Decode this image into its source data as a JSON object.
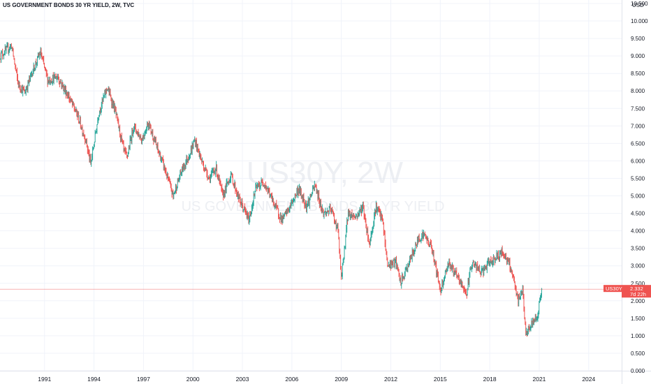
{
  "header": {
    "title": "US GOVERNMENT BONDS 30 YR YIELD, 2W, TVC",
    "currency": "USD"
  },
  "watermark": {
    "symbol": "US30Y, 2W",
    "description": "US GOVERNMENT BONDS 30 YR YIELD"
  },
  "price_tag": {
    "symbol": "US30Y",
    "value": "2.332",
    "countdown": "7d 22h"
  },
  "colors": {
    "up": "#26a69a",
    "down": "#ef5350",
    "price_line": "#ef5350",
    "grid": "#f0f3fa",
    "axis_text": "#131722",
    "watermark": "#dfe2ea"
  },
  "chart_data": {
    "type": "candlestick",
    "title": "US GOVERNMENT BONDS 30 YR YIELD, 2W, TVC",
    "xlabel": "",
    "ylabel": "",
    "x_ticks": [
      "1991",
      "1994",
      "1997",
      "2000",
      "2003",
      "2006",
      "2009",
      "2012",
      "2015",
      "2018",
      "2021",
      "2024"
    ],
    "y_ticks": [
      "0.000",
      "0.500",
      "1.000",
      "1.500",
      "2.000",
      "2.500",
      "3.000",
      "3.500",
      "4.000",
      "4.500",
      "5.000",
      "5.500",
      "6.000",
      "6.500",
      "7.000",
      "7.500",
      "8.000",
      "8.500",
      "9.000",
      "9.500",
      "10.000",
      "10.500"
    ],
    "xlim": [
      1988.3,
      2026.0
    ],
    "ylim": [
      0.0,
      10.6
    ],
    "grid": true,
    "last_value": 2.332,
    "series": [
      {
        "values": [
          [
            1988.3,
            9.0
          ],
          [
            1989.0,
            9.3
          ],
          [
            1989.4,
            8.2
          ],
          [
            1989.8,
            7.95
          ],
          [
            1990.3,
            8.6
          ],
          [
            1990.75,
            9.1
          ],
          [
            1991.2,
            8.3
          ],
          [
            1991.8,
            8.4
          ],
          [
            1992.5,
            7.8
          ],
          [
            1993.0,
            7.3
          ],
          [
            1993.5,
            6.6
          ],
          [
            1993.8,
            5.9
          ],
          [
            1994.3,
            7.4
          ],
          [
            1994.8,
            8.1
          ],
          [
            1995.3,
            7.4
          ],
          [
            1995.8,
            6.3
          ],
          [
            1996.0,
            6.1
          ],
          [
            1996.4,
            7.0
          ],
          [
            1996.9,
            6.6
          ],
          [
            1997.3,
            7.1
          ],
          [
            1997.8,
            6.4
          ],
          [
            1998.2,
            5.9
          ],
          [
            1998.8,
            5.0
          ],
          [
            1999.3,
            5.7
          ],
          [
            1999.9,
            6.3
          ],
          [
            2000.1,
            6.6
          ],
          [
            2000.6,
            5.9
          ],
          [
            2001.0,
            5.5
          ],
          [
            2001.4,
            5.8
          ],
          [
            2001.8,
            5.0
          ],
          [
            2002.3,
            5.6
          ],
          [
            2002.8,
            4.9
          ],
          [
            2003.4,
            4.3
          ],
          [
            2003.8,
            5.2
          ],
          [
            2004.3,
            5.4
          ],
          [
            2004.8,
            4.9
          ],
          [
            2005.4,
            4.3
          ],
          [
            2005.9,
            4.7
          ],
          [
            2006.4,
            5.2
          ],
          [
            2006.9,
            4.7
          ],
          [
            2007.4,
            5.3
          ],
          [
            2007.9,
            4.5
          ],
          [
            2008.4,
            4.6
          ],
          [
            2008.8,
            4.0
          ],
          [
            2009.0,
            2.6
          ],
          [
            2009.4,
            4.5
          ],
          [
            2009.9,
            4.4
          ],
          [
            2010.3,
            4.7
          ],
          [
            2010.7,
            3.6
          ],
          [
            2011.1,
            4.7
          ],
          [
            2011.5,
            4.3
          ],
          [
            2011.8,
            3.0
          ],
          [
            2012.3,
            3.1
          ],
          [
            2012.6,
            2.5
          ],
          [
            2013.2,
            3.2
          ],
          [
            2013.7,
            3.8
          ],
          [
            2014.0,
            3.9
          ],
          [
            2014.5,
            3.5
          ],
          [
            2015.0,
            2.3
          ],
          [
            2015.5,
            3.1
          ],
          [
            2016.0,
            2.7
          ],
          [
            2016.6,
            2.2
          ],
          [
            2016.9,
            3.1
          ],
          [
            2017.5,
            2.8
          ],
          [
            2018.0,
            3.1
          ],
          [
            2018.8,
            3.4
          ],
          [
            2019.3,
            2.9
          ],
          [
            2019.7,
            2.0
          ],
          [
            2020.0,
            2.3
          ],
          [
            2020.2,
            1.0
          ],
          [
            2020.5,
            1.3
          ],
          [
            2020.9,
            1.6
          ],
          [
            2021.15,
            2.33
          ]
        ]
      }
    ]
  }
}
